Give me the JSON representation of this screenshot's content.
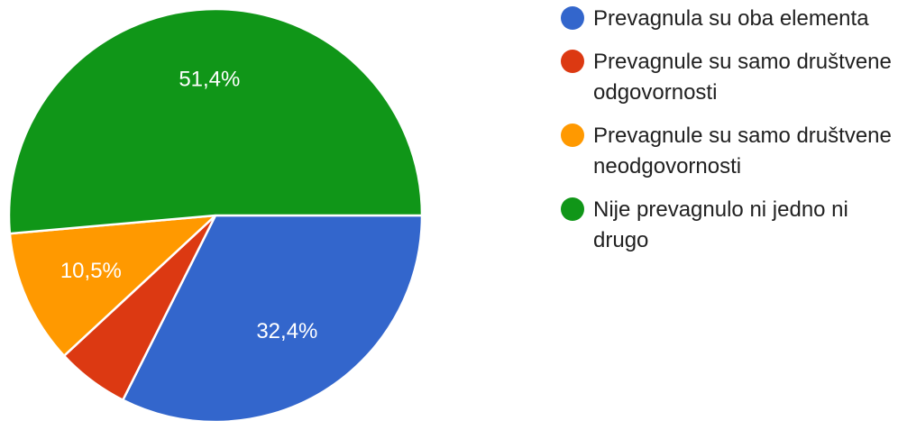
{
  "chart_data": {
    "type": "pie",
    "slices": [
      {
        "name": "Prevagnula su oba elementa",
        "value": 32.4,
        "label": "32,4%",
        "color": "#3366cc"
      },
      {
        "name": "Prevagnule su samo društvene odgovornosti",
        "value": 5.7,
        "label": "",
        "color": "#dc3912"
      },
      {
        "name": "Prevagnule su samo društvene neodgovornosti",
        "value": 10.5,
        "label": "10,5%",
        "color": "#ff9900"
      },
      {
        "name": "Nije prevagnulo ni jedno ni drugo",
        "value": 51.4,
        "label": "51,4%",
        "color": "#109618"
      }
    ],
    "legend_position": "right"
  }
}
